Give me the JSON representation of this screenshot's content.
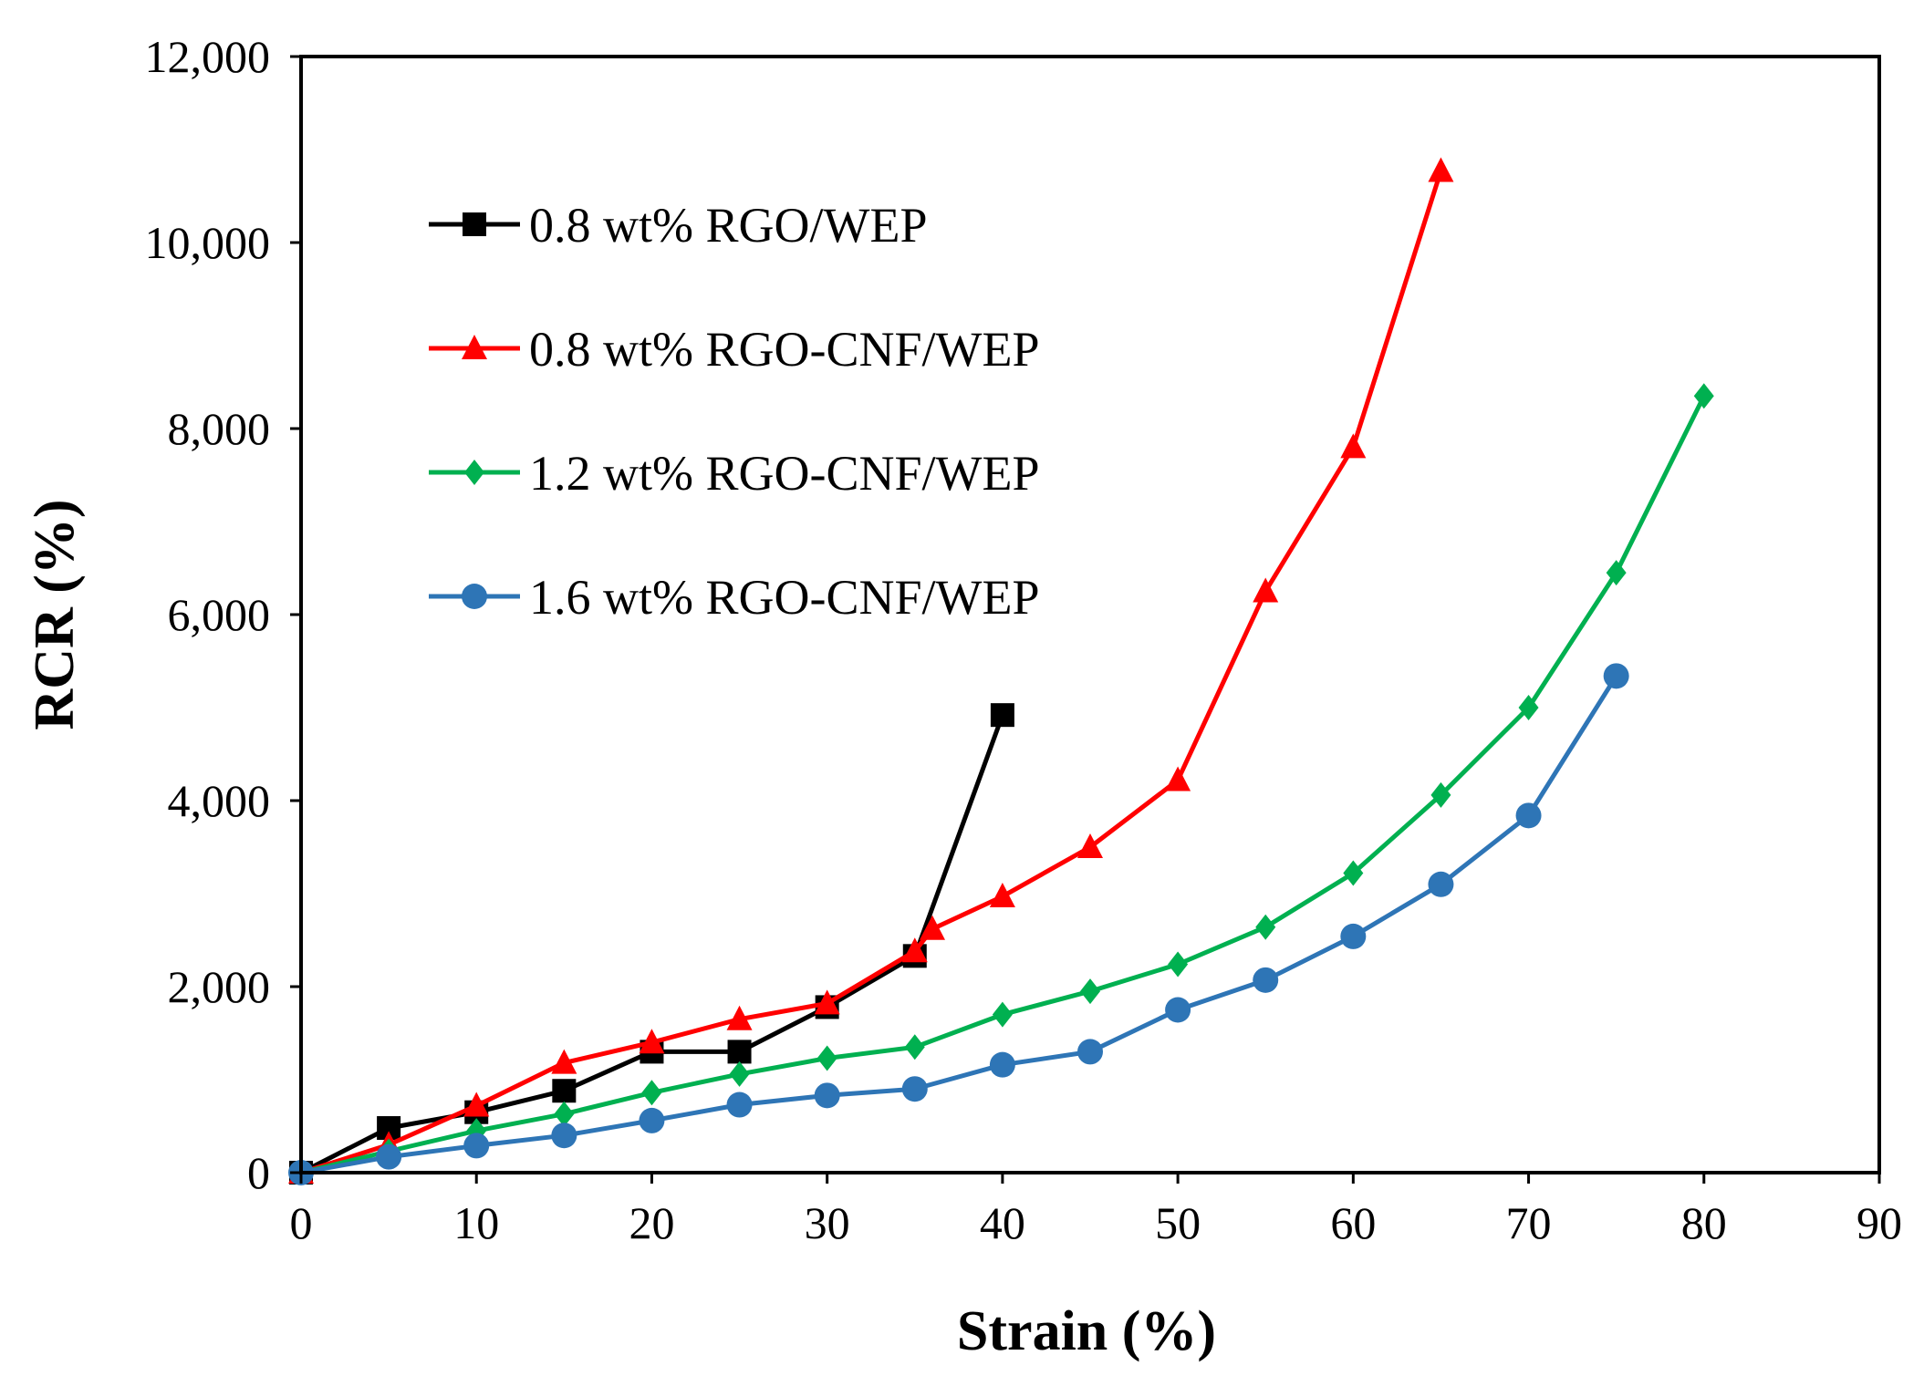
{
  "chart_data": {
    "type": "line",
    "title": "",
    "xlabel": "Strain (%)",
    "ylabel": "RCR (%)",
    "xlim": [
      0,
      90
    ],
    "ylim": [
      0,
      12000
    ],
    "xticks": [
      0,
      10,
      20,
      30,
      40,
      50,
      60,
      70,
      80,
      90
    ],
    "yticks": [
      0,
      2000,
      4000,
      6000,
      8000,
      10000,
      12000
    ],
    "xtick_labels": [
      "0",
      "10",
      "20",
      "30",
      "40",
      "50",
      "60",
      "70",
      "80",
      "90"
    ],
    "ytick_labels": [
      "0",
      "2,000",
      "4,000",
      "6,000",
      "8,000",
      "10,000",
      "12,000"
    ],
    "grid": false,
    "legend_position": "upper-left",
    "series": [
      {
        "name": "0.8 wt% RGO/WEP",
        "color": "#000000",
        "marker": "square",
        "x": [
          0,
          5,
          10,
          15,
          20,
          25,
          30,
          35,
          40
        ],
        "y": [
          0,
          480,
          650,
          880,
          1300,
          1300,
          1780,
          2330,
          4920
        ]
      },
      {
        "name": "0.8 wt% RGO-CNF/WEP",
        "color": "#ff0000",
        "marker": "triangle",
        "x": [
          0,
          5,
          10,
          15,
          20,
          25,
          30,
          35,
          36,
          40,
          45,
          50,
          55,
          60,
          65
        ],
        "y": [
          0,
          300,
          720,
          1180,
          1400,
          1650,
          1820,
          2380,
          2620,
          2970,
          3500,
          4220,
          6250,
          7800,
          10770
        ]
      },
      {
        "name": "1.2 wt% RGO-CNF/WEP",
        "color": "#00b050",
        "marker": "diamond",
        "x": [
          0,
          5,
          10,
          15,
          20,
          25,
          30,
          35,
          40,
          45,
          50,
          55,
          60,
          65,
          70,
          75,
          80
        ],
        "y": [
          0,
          230,
          450,
          630,
          860,
          1060,
          1230,
          1350,
          1700,
          1950,
          2240,
          2640,
          3220,
          4060,
          5000,
          6450,
          8350
        ]
      },
      {
        "name": "1.6 wt% RGO-CNF/WEP",
        "color": "#2e75b6",
        "marker": "circle",
        "x": [
          0,
          5,
          10,
          15,
          20,
          25,
          30,
          35,
          40,
          45,
          50,
          55,
          60,
          65,
          70,
          75
        ],
        "y": [
          0,
          170,
          290,
          400,
          560,
          730,
          830,
          900,
          1160,
          1300,
          1750,
          2070,
          2540,
          3100,
          3840,
          5340
        ]
      }
    ]
  }
}
